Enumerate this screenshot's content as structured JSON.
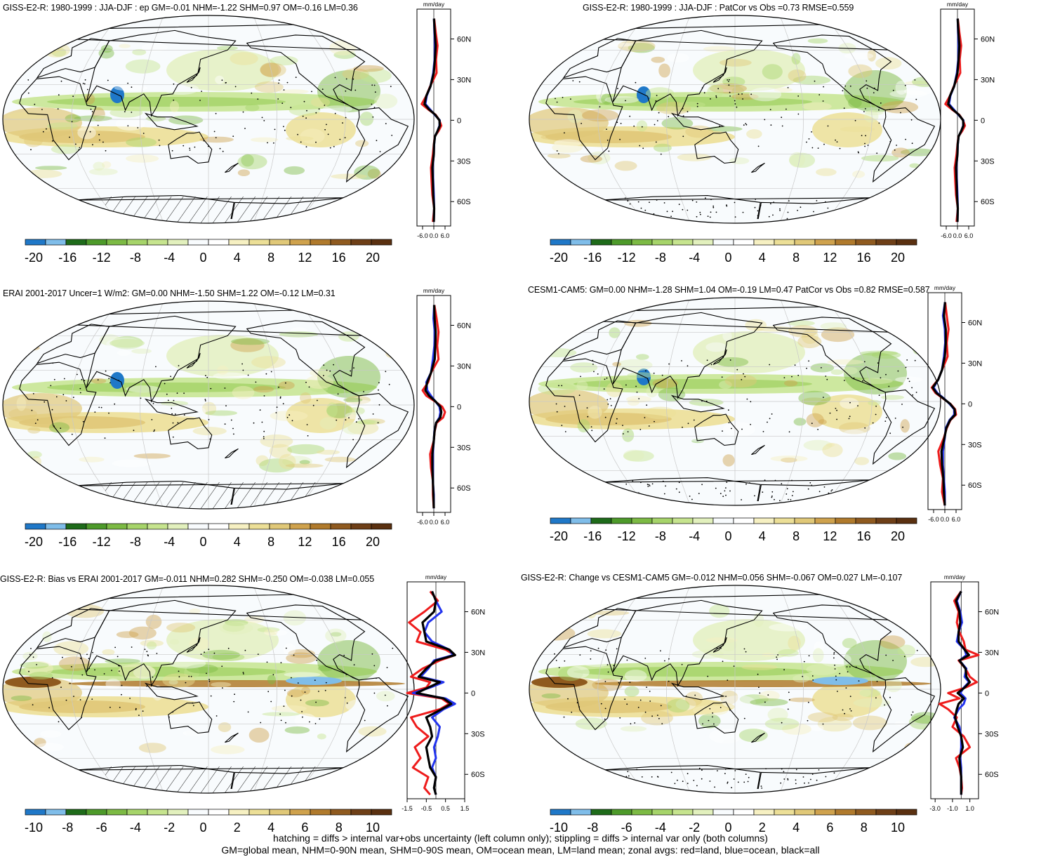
{
  "colors": {
    "scale": [
      "#1f78c8",
      "#7fbde9",
      "#1e6b1a",
      "#4d9a2a",
      "#7cba44",
      "#a6d46a",
      "#c6e48e",
      "#e2f0bd",
      "#f8fbfd",
      "#ffffff",
      "#f6f0c2",
      "#ecdf97",
      "#e0c878",
      "#cfa24d",
      "#b07a2c",
      "#8f5a1f",
      "#6e3f17",
      "#5a3010"
    ],
    "zonal_land": "#ee1c1c",
    "zonal_ocean": "#2233ee",
    "zonal_all": "#000000"
  },
  "panels": [
    {
      "title": "GISS-E2-R: 1980-1999 : JJA-DJF : ep GM=-0.01 NHM=-1.22 SHM=0.97 OM=-0.16 LM=0.36",
      "colorbar_labels": [
        "-20",
        "-16",
        "-12",
        "-8",
        "-4",
        "0",
        "4",
        "8",
        "12",
        "16",
        "20"
      ],
      "hatched": true
    },
    {
      "title": "GISS-E2-R: 1980-1999 : JJA-DJF : PatCor vs Obs =0.73 RMSE=0.559",
      "colorbar_labels": [
        "-20",
        "-16",
        "-12",
        "-8",
        "-4",
        "0",
        "4",
        "8",
        "12",
        "16",
        "20"
      ],
      "hatched": false
    },
    {
      "title": "ERAI 2001-2017 Uncer=1 W/m2: GM=0.00 NHM=-1.50 SHM=1.22 OM=-0.12 LM=0.31",
      "colorbar_labels": [
        "-20",
        "-16",
        "-12",
        "-8",
        "-4",
        "0",
        "4",
        "8",
        "12",
        "16",
        "20"
      ],
      "hatched": true
    },
    {
      "title": "CESM1-CAM5: GM=0.00 NHM=-1.28 SHM=1.04 OM=-0.19 LM=0.47 PatCor vs Obs =0.82 RMSE=0.587",
      "colorbar_labels": [
        "-20",
        "-16",
        "-12",
        "-8",
        "-4",
        "0",
        "4",
        "8",
        "12",
        "16",
        "20"
      ],
      "hatched": false
    },
    {
      "title": "GISS-E2-R: Bias vs ERAI 2001-2017 GM=-0.011 NHM=0.282 SHM=-0.250 OM=-0.038 LM=0.055",
      "colorbar_labels": [
        "-10",
        "-8",
        "-6",
        "-4",
        "-2",
        "0",
        "2",
        "4",
        "6",
        "8",
        "10"
      ],
      "hatched": true
    },
    {
      "title": "GISS-E2-R: Change vs CESM1-CAM5 GM=-0.012 NHM=0.056 SHM=-0.067 OM=0.027 LM=-0.107",
      "colorbar_labels": [
        "-10",
        "-8",
        "-6",
        "-4",
        "-2",
        "0",
        "2",
        "4",
        "6",
        "8",
        "10"
      ],
      "hatched": false
    }
  ],
  "chart_data": [
    {
      "type": "line",
      "title": "",
      "xlabel": "mm/day",
      "ylabel": "",
      "x_ticks": [
        "-6.0",
        "0.0",
        "6.0"
      ],
      "y_ticks": [
        "60N",
        "30N",
        "0",
        "30S",
        "60S"
      ],
      "xlim": [
        -9,
        9
      ],
      "ylim": [
        -78,
        82
      ],
      "y": [
        75,
        65,
        55,
        45,
        35,
        25,
        18,
        12,
        8,
        4,
        0,
        -4,
        -8,
        -12,
        -18,
        -25,
        -35,
        -45,
        -55,
        -65,
        -75
      ],
      "series": [
        {
          "name": "land",
          "values": [
            0.2,
            1.0,
            2.0,
            1.2,
            1.5,
            -2.0,
            -4.0,
            -6.5,
            -3.0,
            1.0,
            3.0,
            4.0,
            2.5,
            0.5,
            0.0,
            -0.5,
            -1.5,
            -1.2,
            -0.8,
            0.2,
            -0.5
          ]
        },
        {
          "name": "ocean",
          "values": [
            0.1,
            0.3,
            0.6,
            0.4,
            -0.3,
            -1.8,
            -3.8,
            -4.5,
            -2.0,
            0.5,
            3.2,
            3.0,
            2.0,
            0.6,
            0.2,
            0.0,
            -0.6,
            -0.3,
            0.0,
            0.2,
            0.0
          ]
        },
        {
          "name": "all",
          "values": [
            0.1,
            0.5,
            1.0,
            0.6,
            0.0,
            -1.8,
            -4.0,
            -5.0,
            -2.5,
            0.8,
            3.0,
            3.2,
            2.0,
            0.6,
            0.1,
            0.0,
            -0.8,
            -0.5,
            -0.3,
            0.2,
            0.0
          ]
        }
      ]
    },
    {
      "type": "line",
      "title": "",
      "xlabel": "mm/day",
      "ylabel": "",
      "x_ticks": [
        "-6.0",
        "0.0",
        "6.0"
      ],
      "y_ticks": [
        "60N",
        "30N",
        "0",
        "30S",
        "60S"
      ],
      "xlim": [
        -9,
        9
      ],
      "ylim": [
        -78,
        82
      ],
      "y": [
        75,
        65,
        55,
        45,
        35,
        25,
        18,
        12,
        8,
        4,
        0,
        -4,
        -8,
        -12,
        -18,
        -25,
        -35,
        -45,
        -55,
        -65,
        -75
      ],
      "series": [
        {
          "name": "land",
          "values": [
            0.2,
            1.0,
            2.0,
            1.2,
            1.5,
            -2.0,
            -4.0,
            -6.5,
            -3.0,
            1.0,
            3.0,
            4.0,
            2.5,
            0.5,
            0.0,
            -0.5,
            -1.5,
            -1.2,
            -0.8,
            0.2,
            -0.5
          ]
        },
        {
          "name": "ocean",
          "values": [
            0.1,
            0.3,
            0.6,
            0.4,
            -0.3,
            -1.8,
            -3.8,
            -4.5,
            -2.0,
            0.5,
            3.2,
            3.0,
            2.0,
            0.6,
            0.2,
            0.0,
            -0.6,
            -0.3,
            0.0,
            0.2,
            0.0
          ]
        },
        {
          "name": "all",
          "values": [
            0.1,
            0.5,
            1.0,
            0.6,
            0.0,
            -1.8,
            -4.0,
            -5.0,
            -2.5,
            0.8,
            3.0,
            3.2,
            2.0,
            0.6,
            0.1,
            0.0,
            -0.8,
            -0.5,
            -0.3,
            0.2,
            0.0
          ]
        }
      ]
    },
    {
      "type": "line",
      "title": "",
      "xlabel": "mm/day",
      "ylabel": "",
      "x_ticks": [
        "-6.0",
        "0.0",
        "6.0"
      ],
      "y_ticks": [
        "60N",
        "30N",
        "0",
        "30S",
        "60S"
      ],
      "xlim": [
        -9,
        9
      ],
      "ylim": [
        -78,
        82
      ],
      "y": [
        75,
        65,
        55,
        45,
        35,
        25,
        18,
        12,
        8,
        4,
        0,
        -4,
        -8,
        -12,
        -18,
        -25,
        -35,
        -45,
        -55,
        -65,
        -75
      ],
      "series": [
        {
          "name": "land",
          "values": [
            0.3,
            1.5,
            2.5,
            1.8,
            2.5,
            -1.5,
            -3.0,
            -6.0,
            -4.0,
            0.5,
            4.5,
            6.0,
            5.0,
            1.5,
            0.5,
            0.0,
            -2.0,
            -1.5,
            -0.5,
            -0.5,
            0.0
          ]
        },
        {
          "name": "ocean",
          "values": [
            0.2,
            -0.2,
            0.5,
            0.3,
            -0.5,
            -1.5,
            -4.0,
            -3.5,
            -1.5,
            0.8,
            3.0,
            3.5,
            3.0,
            1.2,
            0.3,
            0.0,
            -0.5,
            -0.5,
            -0.5,
            0.0,
            0.0
          ]
        },
        {
          "name": "all",
          "values": [
            0.2,
            0.4,
            1.0,
            0.8,
            0.5,
            -1.5,
            -3.5,
            -4.5,
            -2.5,
            0.8,
            3.5,
            4.0,
            3.5,
            1.2,
            0.4,
            0.0,
            -0.8,
            -0.8,
            -0.5,
            -0.2,
            0.0
          ]
        }
      ]
    },
    {
      "type": "line",
      "title": "",
      "xlabel": "mm/day",
      "ylabel": "",
      "x_ticks": [
        "-6.0",
        "0.0",
        "6.0"
      ],
      "y_ticks": [
        "60N",
        "30N",
        "0",
        "30S",
        "60S"
      ],
      "xlim": [
        -9,
        9
      ],
      "ylim": [
        -78,
        82
      ],
      "y": [
        75,
        65,
        55,
        45,
        35,
        25,
        18,
        12,
        8,
        4,
        0,
        -4,
        -8,
        -12,
        -18,
        -25,
        -35,
        -45,
        -55,
        -65,
        -75
      ],
      "series": [
        {
          "name": "land",
          "values": [
            0.2,
            1.0,
            2.0,
            1.0,
            1.5,
            -1.5,
            -3.5,
            -7.0,
            -5.0,
            -1.0,
            3.0,
            5.5,
            6.0,
            3.0,
            1.0,
            -0.5,
            -3.5,
            -2.5,
            -1.0,
            -1.5,
            0.0
          ]
        },
        {
          "name": "ocean",
          "values": [
            0.1,
            -1.0,
            0.0,
            0.2,
            -0.5,
            -1.5,
            -3.5,
            -6.0,
            -4.0,
            -0.5,
            2.5,
            5.0,
            5.0,
            2.5,
            0.5,
            0.0,
            -1.0,
            -1.0,
            -0.5,
            0.0,
            0.0
          ]
        },
        {
          "name": "all",
          "values": [
            0.1,
            -0.5,
            0.5,
            0.5,
            0.0,
            -1.5,
            -3.5,
            -6.5,
            -4.5,
            -0.8,
            2.8,
            5.2,
            5.5,
            2.8,
            0.8,
            -0.2,
            -1.8,
            -1.5,
            -0.8,
            -0.5,
            0.0
          ]
        }
      ]
    },
    {
      "type": "line",
      "title": "",
      "xlabel": "mm/day",
      "ylabel": "",
      "x_ticks": [
        "-1.5",
        "-0.5",
        "0.5",
        "1.5"
      ],
      "y_ticks": [
        "60N",
        "30N",
        "0",
        "30S",
        "60S"
      ],
      "xlim": [
        -1.5,
        1.5
      ],
      "ylim": [
        -78,
        82
      ],
      "y": [
        75,
        68,
        60,
        52,
        45,
        38,
        32,
        28,
        24,
        18,
        12,
        8,
        4,
        0,
        -4,
        -8,
        -12,
        -18,
        -25,
        -32,
        -40,
        -48,
        -55,
        -62,
        -70,
        -75
      ],
      "series": [
        {
          "name": "land",
          "values": [
            -0.3,
            0.1,
            -0.6,
            -1.4,
            -0.8,
            -1.0,
            0.5,
            1.0,
            0.2,
            -0.7,
            -1.3,
            -0.3,
            -0.5,
            -1.5,
            0.3,
            0.7,
            0.2,
            -1.3,
            -1.0,
            -0.4,
            -1.1,
            -0.8,
            -1.2,
            -0.4,
            -0.6,
            -0.3
          ]
        },
        {
          "name": "ocean",
          "values": [
            -0.2,
            0.0,
            0.3,
            -0.4,
            -0.6,
            -0.2,
            0.7,
            0.9,
            -0.1,
            -0.4,
            -0.8,
            0.4,
            -0.3,
            -1.2,
            0.5,
            1.0,
            0.4,
            -0.2,
            0.2,
            0.1,
            -0.1,
            0.0,
            -0.2,
            0.0,
            -0.1,
            0.0
          ]
        },
        {
          "name": "all",
          "values": [
            -0.2,
            0.0,
            -0.1,
            -0.7,
            -0.6,
            -0.5,
            0.7,
            1.0,
            0.0,
            -0.5,
            -0.9,
            0.2,
            -0.4,
            -1.0,
            0.4,
            0.8,
            0.3,
            -0.5,
            -0.3,
            -0.2,
            -0.5,
            -0.4,
            -0.3,
            0.0,
            -0.1,
            0.0
          ]
        }
      ]
    },
    {
      "type": "line",
      "title": "",
      "xlabel": "mm/day",
      "ylabel": "",
      "x_ticks": [
        "-3.0",
        "-1.0",
        "1.0"
      ],
      "y_ticks": [
        "60N",
        "30N",
        "0",
        "30S",
        "60S"
      ],
      "xlim": [
        -3.5,
        2.0
      ],
      "ylim": [
        -78,
        82
      ],
      "y": [
        75,
        68,
        60,
        52,
        45,
        38,
        32,
        28,
        24,
        18,
        12,
        8,
        4,
        0,
        -4,
        -8,
        -12,
        -18,
        -25,
        -32,
        -40,
        -48,
        -55,
        -62,
        -70,
        -75
      ],
      "series": [
        {
          "name": "land",
          "values": [
            0.0,
            -0.8,
            -0.3,
            -0.5,
            -0.2,
            0.3,
            0.5,
            2.0,
            -0.3,
            0.5,
            1.0,
            1.8,
            0.5,
            -1.5,
            -0.2,
            -2.5,
            -1.5,
            -0.5,
            -1.0,
            0.3,
            1.0,
            -0.6,
            -0.2,
            0.0,
            0.1,
            0.0
          ]
        },
        {
          "name": "ocean",
          "values": [
            0.0,
            -0.5,
            -0.1,
            0.1,
            -0.3,
            -0.5,
            0.4,
            0.6,
            -0.2,
            0.6,
            0.4,
            0.9,
            0.3,
            -0.1,
            0.5,
            0.3,
            -0.3,
            -0.8,
            -0.2,
            0.0,
            0.0,
            -0.1,
            0.0,
            0.0,
            0.0,
            0.0
          ]
        },
        {
          "name": "all",
          "values": [
            0.0,
            -0.6,
            -0.2,
            -0.1,
            -0.3,
            -0.3,
            0.4,
            0.9,
            -0.2,
            0.5,
            0.6,
            1.0,
            0.4,
            -0.4,
            0.3,
            -0.3,
            -0.5,
            -0.7,
            -0.4,
            0.0,
            0.2,
            -0.2,
            -0.1,
            0.0,
            0.0,
            0.0
          ]
        }
      ]
    }
  ],
  "footer": {
    "line1": "hatching = diffs > internal var+obs uncertainty (left column only); stippling = diffs > internal var only (both columns)",
    "line2": "GM=global mean, NHM=0-90N mean, SHM=0-90S mean, OM=ocean mean, LM=land mean; zonal avgs: red=land, blue=ocean, black=all"
  }
}
